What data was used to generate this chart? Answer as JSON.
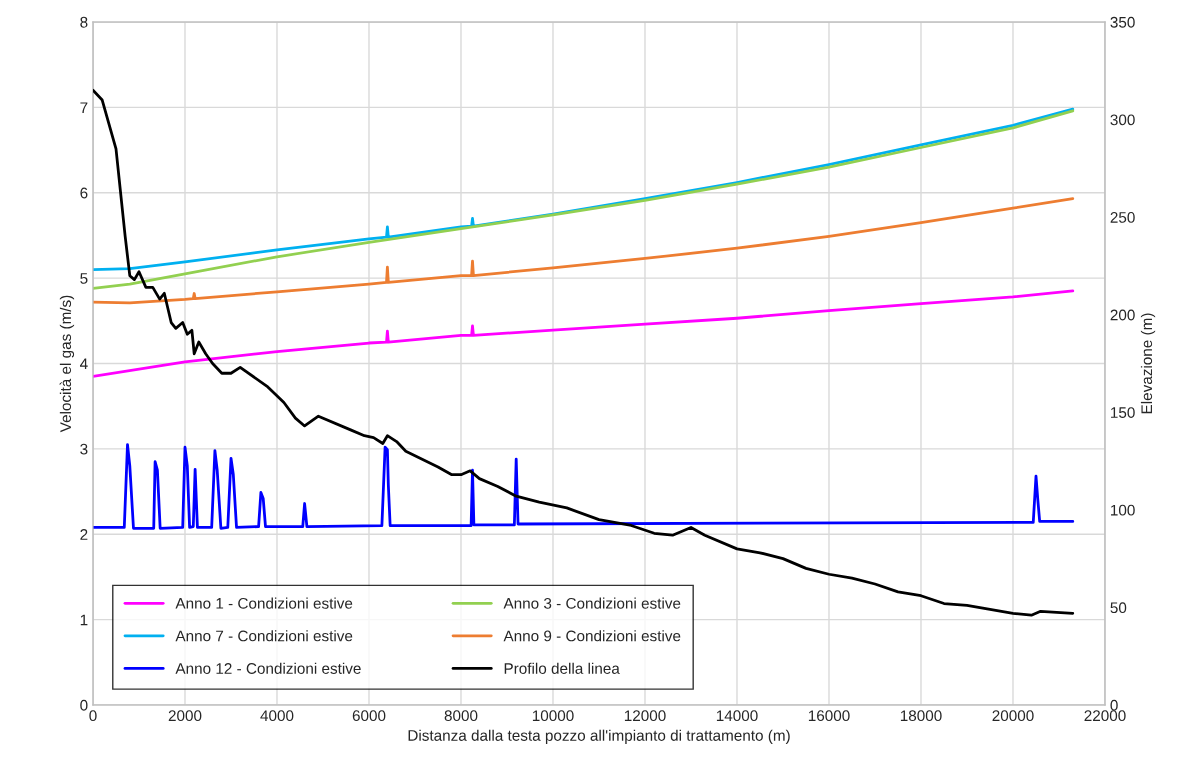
{
  "chart_data": {
    "type": "line",
    "xlabel": "Distanza dalla testa pozzo all'impianto di trattamento (m)",
    "ylabel": "Velocità el gas (m/s)",
    "y2label": "Elevazione (m)",
    "xlim": [
      0,
      22000
    ],
    "xticks": [
      0,
      2000,
      4000,
      6000,
      8000,
      10000,
      12000,
      14000,
      16000,
      18000,
      20000,
      22000
    ],
    "ylim": [
      0,
      8
    ],
    "yticks": [
      0,
      1,
      2,
      3,
      4,
      5,
      6,
      7,
      8
    ],
    "y2lim": [
      0,
      350
    ],
    "y2ticks": [
      0,
      50,
      100,
      150,
      200,
      250,
      300,
      350
    ],
    "grid": true,
    "legend": "bottom left",
    "marker": "none",
    "line_style": "solid",
    "series": [
      {
        "name": "Anno 1 - Condizioni estive",
        "color": "#ff00ff",
        "x": [
          0,
          2000,
          4000,
          6000,
          6380,
          6400,
          6420,
          8000,
          8230,
          8250,
          8270,
          10000,
          12000,
          14000,
          16000,
          18000,
          20000,
          21300
        ],
        "values": [
          3.85,
          4.02,
          4.14,
          4.24,
          4.25,
          4.38,
          4.25,
          4.33,
          4.33,
          4.44,
          4.33,
          4.39,
          4.46,
          4.53,
          4.62,
          4.7,
          4.78,
          4.85
        ]
      },
      {
        "name": "Anno 3 - Condizioni estive",
        "color": "#92d050",
        "x": [
          0,
          800,
          2000,
          4000,
          6000,
          8000,
          10000,
          12000,
          14000,
          16000,
          18000,
          20000,
          21300
        ],
        "values": [
          4.88,
          4.93,
          5.05,
          5.25,
          5.42,
          5.58,
          5.74,
          5.91,
          6.1,
          6.3,
          6.53,
          6.76,
          6.96
        ]
      },
      {
        "name": "Anno 7 - Condizioni estive",
        "color": "#00b0f0",
        "x": [
          0,
          800,
          2000,
          4000,
          6000,
          6380,
          6400,
          6420,
          8000,
          8230,
          8250,
          8270,
          10000,
          12000,
          14000,
          16000,
          18000,
          20000,
          21300
        ],
        "values": [
          5.1,
          5.11,
          5.19,
          5.33,
          5.46,
          5.48,
          5.6,
          5.48,
          5.6,
          5.61,
          5.7,
          5.61,
          5.75,
          5.93,
          6.12,
          6.33,
          6.56,
          6.79,
          6.98
        ]
      },
      {
        "name": "Anno 9 - Condizioni estive",
        "color": "#ed7d31",
        "x": [
          0,
          800,
          2000,
          2180,
          2200,
          2220,
          4000,
          6000,
          6380,
          6400,
          6420,
          8000,
          8230,
          8250,
          8270,
          10000,
          12000,
          14000,
          16000,
          18000,
          20000,
          21300
        ],
        "values": [
          4.72,
          4.71,
          4.75,
          4.76,
          4.82,
          4.76,
          4.84,
          4.93,
          4.95,
          5.13,
          4.95,
          5.03,
          5.03,
          5.2,
          5.03,
          5.12,
          5.23,
          5.35,
          5.49,
          5.65,
          5.82,
          5.93
        ]
      },
      {
        "name": "Anno 12 - Condizioni estive",
        "color": "#0000ff",
        "x": [
          0,
          680,
          750,
          800,
          880,
          1320,
          1350,
          1400,
          1460,
          1950,
          2000,
          2050,
          2100,
          2180,
          2220,
          2270,
          2580,
          2650,
          2700,
          2780,
          2930,
          3000,
          3050,
          3120,
          3600,
          3650,
          3700,
          3750,
          4560,
          4600,
          4650,
          6280,
          6350,
          6400,
          6420,
          6460,
          8220,
          8250,
          8280,
          9160,
          9200,
          9240,
          20440,
          20500,
          20540,
          20580,
          21300
        ],
        "values": [
          2.08,
          2.08,
          3.05,
          2.8,
          2.07,
          2.07,
          2.85,
          2.75,
          2.07,
          2.08,
          3.02,
          2.8,
          2.08,
          2.09,
          2.76,
          2.08,
          2.08,
          2.98,
          2.75,
          2.07,
          2.08,
          2.89,
          2.7,
          2.08,
          2.09,
          2.49,
          2.42,
          2.09,
          2.09,
          2.36,
          2.09,
          2.1,
          3.02,
          2.99,
          2.58,
          2.1,
          2.1,
          2.75,
          2.11,
          2.11,
          2.88,
          2.12,
          2.14,
          2.68,
          2.4,
          2.15,
          2.15
        ]
      },
      {
        "name": "Profilo della linea",
        "color": "#000000",
        "axis": "y2",
        "x": [
          0,
          200,
          500,
          700,
          800,
          900,
          1000,
          1150,
          1300,
          1450,
          1550,
          1700,
          1800,
          1950,
          2050,
          2150,
          2200,
          2300,
          2450,
          2600,
          2800,
          3000,
          3200,
          3800,
          4150,
          4400,
          4600,
          4900,
          5600,
          5900,
          6100,
          6300,
          6400,
          6600,
          6800,
          7500,
          7800,
          8000,
          8200,
          8400,
          8800,
          9200,
          9700,
          10300,
          11000,
          11700,
          12200,
          12600,
          13000,
          13300,
          14000,
          14500,
          15000,
          15500,
          16000,
          16500,
          17000,
          17500,
          18000,
          18500,
          19000,
          19500,
          20000,
          20400,
          20600,
          21300
        ],
        "values": [
          315,
          310,
          285,
          240,
          220,
          218,
          222,
          214,
          214,
          208,
          211,
          196,
          193,
          196,
          190,
          192,
          180,
          186,
          180,
          175,
          170,
          170,
          173,
          163,
          155,
          147,
          143,
          148,
          141,
          138,
          137,
          134,
          138,
          135,
          130,
          122,
          118,
          118,
          120,
          116,
          112,
          107,
          104,
          101,
          95,
          92,
          88,
          87,
          91,
          87,
          80,
          78,
          75,
          70,
          67,
          65,
          62,
          58,
          56,
          52,
          51,
          49,
          47,
          46,
          48,
          47
        ]
      }
    ]
  }
}
